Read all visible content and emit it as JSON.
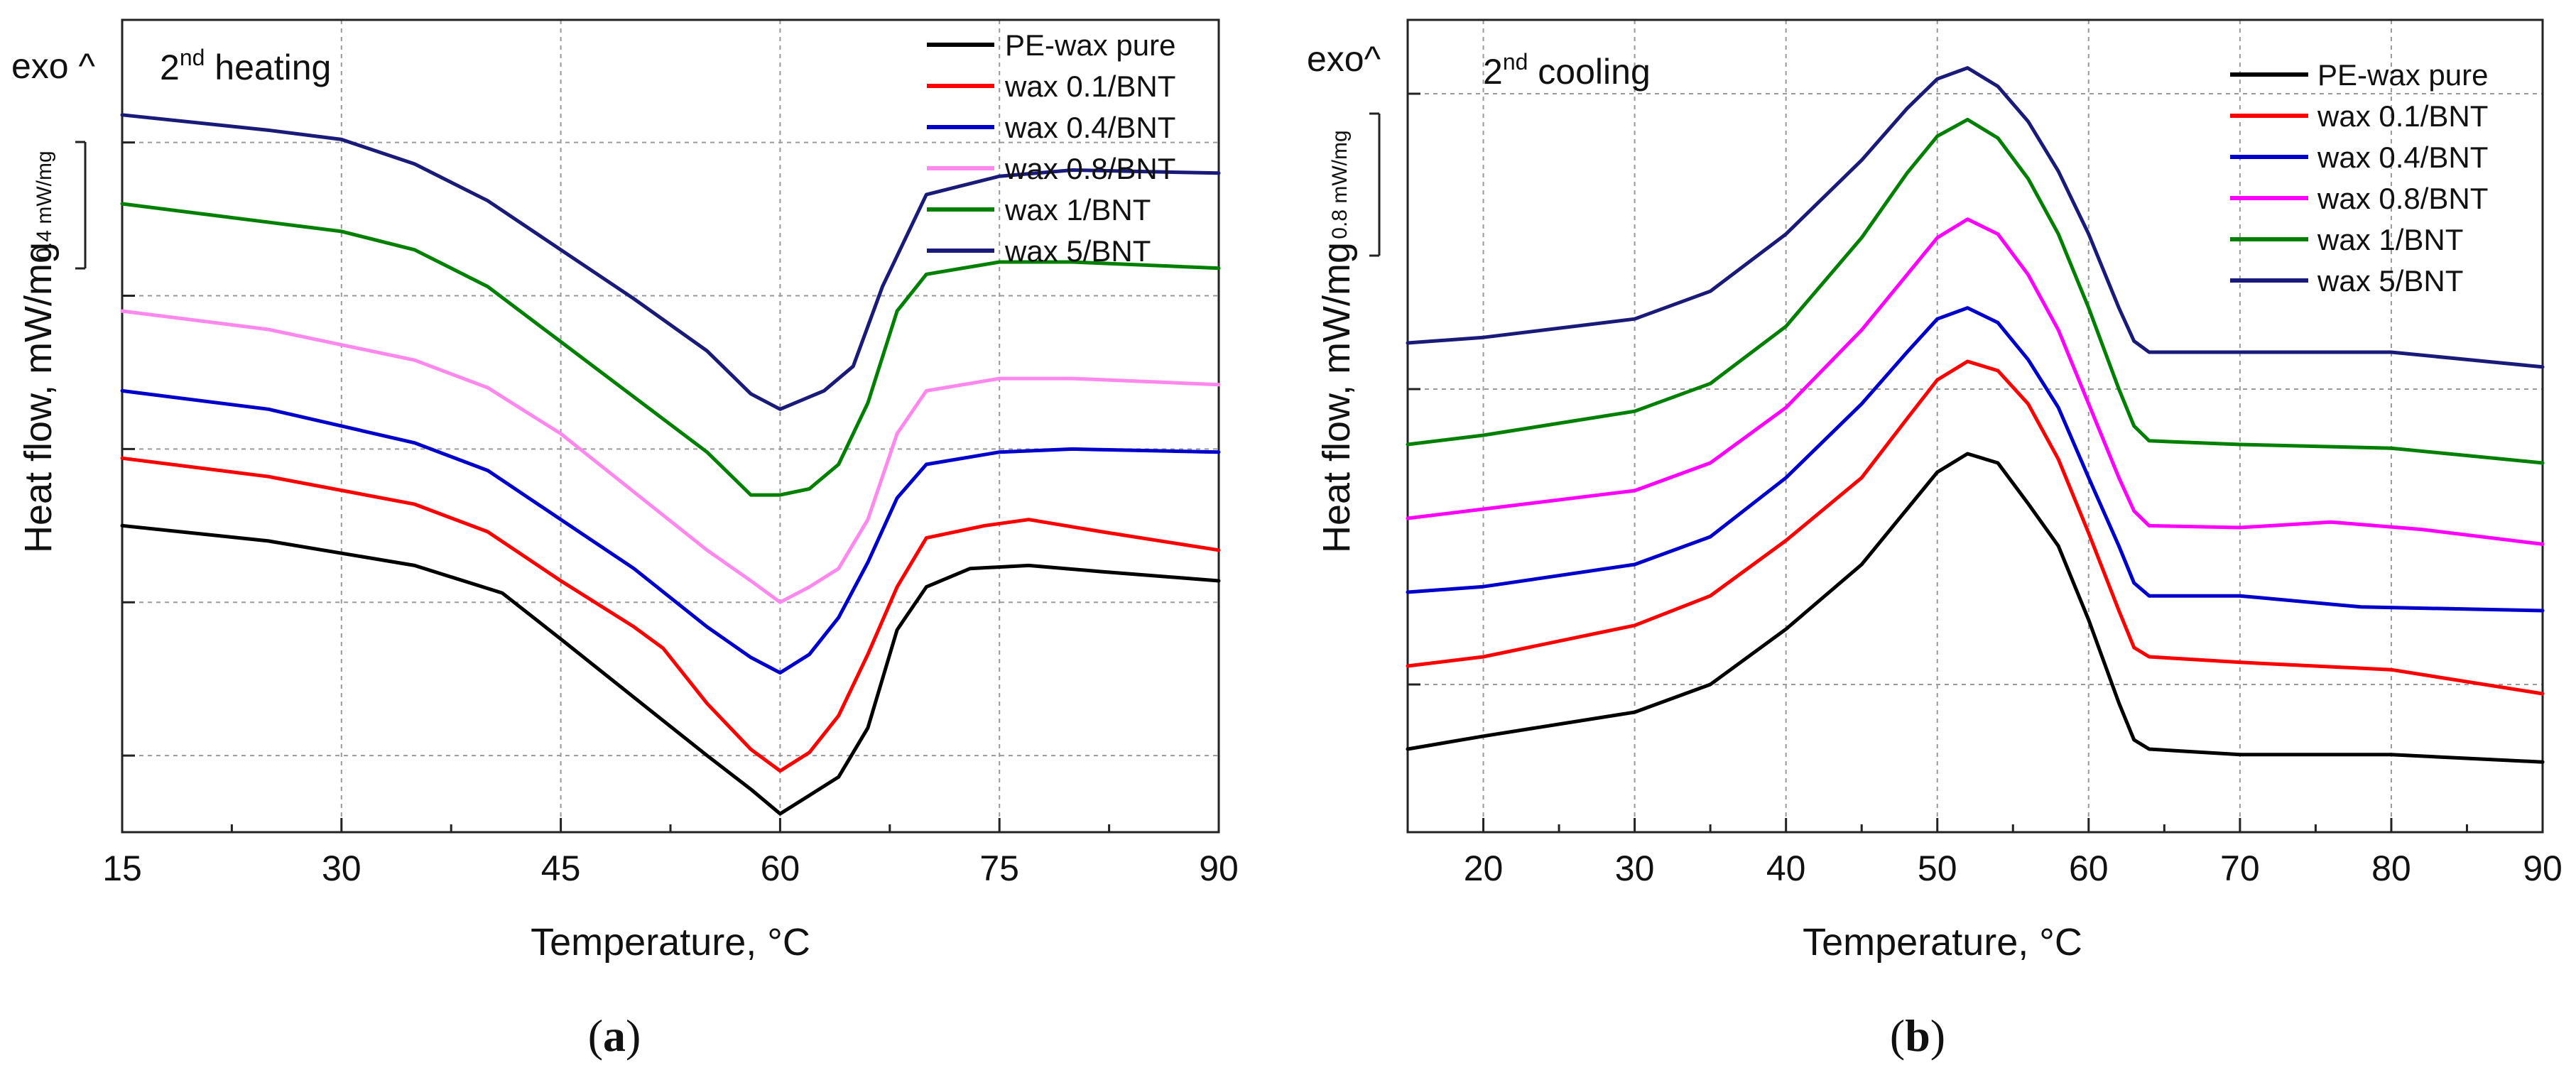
{
  "chart_data": [
    {
      "type": "line",
      "panel_label": "a",
      "xlabel": "Temperature, °C",
      "ylabel": "Heat flow, mW/mg",
      "annotation": "2nd heating",
      "exo_label": "exo ^",
      "scale_bar_label": "0.4 mW/mg",
      "scale_bar_value": 0.4,
      "xlim": [
        15,
        90
      ],
      "x_ticks": [
        "15",
        "30",
        "45",
        "60",
        "75",
        "90"
      ],
      "ylim": [
        0,
        2.65
      ],
      "y_grid": [
        0.25,
        0.75,
        1.25,
        1.75,
        2.25
      ],
      "grid": true,
      "legend_position": "top-right",
      "series": [
        {
          "name": "PE-wax pure",
          "color": "#000000",
          "points": [
            [
              15,
              1.0
            ],
            [
              25,
              0.95
            ],
            [
              35,
              0.87
            ],
            [
              41,
              0.78
            ],
            [
              45,
              0.63
            ],
            [
              50,
              0.44
            ],
            [
              55,
              0.25
            ],
            [
              58,
              0.14
            ],
            [
              60,
              0.06
            ],
            [
              62,
              0.12
            ],
            [
              64,
              0.18
            ],
            [
              66,
              0.34
            ],
            [
              67,
              0.5
            ],
            [
              68,
              0.66
            ],
            [
              70,
              0.8
            ],
            [
              73,
              0.86
            ],
            [
              77,
              0.87
            ],
            [
              82,
              0.85
            ],
            [
              90,
              0.82
            ]
          ]
        },
        {
          "name": "wax 0.1/BNT",
          "color": "#ff0000",
          "points": [
            [
              15,
              1.22
            ],
            [
              25,
              1.16
            ],
            [
              35,
              1.07
            ],
            [
              40,
              0.98
            ],
            [
              45,
              0.82
            ],
            [
              50,
              0.67
            ],
            [
              52,
              0.6
            ],
            [
              55,
              0.42
            ],
            [
              58,
              0.27
            ],
            [
              60,
              0.2
            ],
            [
              62,
              0.26
            ],
            [
              64,
              0.38
            ],
            [
              66,
              0.58
            ],
            [
              68,
              0.8
            ],
            [
              70,
              0.96
            ],
            [
              74,
              1.0
            ],
            [
              77,
              1.02
            ],
            [
              82,
              0.98
            ],
            [
              90,
              0.92
            ]
          ]
        },
        {
          "name": "wax 0.4/BNT",
          "color": "#0000cc",
          "points": [
            [
              15,
              1.44
            ],
            [
              25,
              1.38
            ],
            [
              35,
              1.27
            ],
            [
              40,
              1.18
            ],
            [
              45,
              1.02
            ],
            [
              50,
              0.86
            ],
            [
              55,
              0.67
            ],
            [
              58,
              0.57
            ],
            [
              60,
              0.52
            ],
            [
              62,
              0.58
            ],
            [
              64,
              0.7
            ],
            [
              66,
              0.88
            ],
            [
              68,
              1.09
            ],
            [
              70,
              1.2
            ],
            [
              75,
              1.24
            ],
            [
              80,
              1.25
            ],
            [
              90,
              1.24
            ]
          ]
        },
        {
          "name": "wax 0.8/BNT",
          "color": "#ff88ee",
          "points": [
            [
              15,
              1.7
            ],
            [
              25,
              1.64
            ],
            [
              35,
              1.54
            ],
            [
              40,
              1.45
            ],
            [
              45,
              1.3
            ],
            [
              50,
              1.11
            ],
            [
              55,
              0.92
            ],
            [
              58,
              0.82
            ],
            [
              60,
              0.75
            ],
            [
              62,
              0.8
            ],
            [
              64,
              0.86
            ],
            [
              66,
              1.02
            ],
            [
              68,
              1.3
            ],
            [
              70,
              1.44
            ],
            [
              75,
              1.48
            ],
            [
              80,
              1.48
            ],
            [
              90,
              1.46
            ]
          ]
        },
        {
          "name": "wax 1/BNT",
          "color": "#008000",
          "points": [
            [
              15,
              2.05
            ],
            [
              20,
              2.02
            ],
            [
              30,
              1.96
            ],
            [
              35,
              1.9
            ],
            [
              40,
              1.78
            ],
            [
              45,
              1.6
            ],
            [
              50,
              1.42
            ],
            [
              55,
              1.24
            ],
            [
              58,
              1.1
            ],
            [
              60,
              1.1
            ],
            [
              62,
              1.12
            ],
            [
              64,
              1.2
            ],
            [
              66,
              1.4
            ],
            [
              68,
              1.7
            ],
            [
              70,
              1.82
            ],
            [
              75,
              1.86
            ],
            [
              80,
              1.86
            ],
            [
              90,
              1.84
            ]
          ]
        },
        {
          "name": "wax 5/BNT",
          "color": "#1a1a7a",
          "points": [
            [
              15,
              2.34
            ],
            [
              25,
              2.29
            ],
            [
              30,
              2.26
            ],
            [
              35,
              2.18
            ],
            [
              40,
              2.06
            ],
            [
              45,
              1.9
            ],
            [
              50,
              1.74
            ],
            [
              55,
              1.57
            ],
            [
              58,
              1.43
            ],
            [
              60,
              1.38
            ],
            [
              63,
              1.44
            ],
            [
              65,
              1.52
            ],
            [
              67,
              1.78
            ],
            [
              70,
              2.08
            ],
            [
              75,
              2.14
            ],
            [
              80,
              2.16
            ],
            [
              90,
              2.15
            ]
          ]
        }
      ]
    },
    {
      "type": "line",
      "panel_label": "b",
      "xlabel": "Temperature, °C",
      "ylabel": "Heat flow, mW/mg",
      "annotation": "2nd cooling",
      "exo_label": "exo^",
      "scale_bar_label": "0.8 mW/mg",
      "scale_bar_value": 0.8,
      "xlim": [
        15,
        90
      ],
      "x_ticks": [
        "20",
        "30",
        "40",
        "50",
        "60",
        "70",
        "80",
        "90"
      ],
      "ylim": [
        0,
        4.4
      ],
      "y_grid": [
        0.8,
        2.4,
        4.0
      ],
      "grid": true,
      "legend_position": "top-right",
      "series": [
        {
          "name": "PE-wax pure",
          "color": "#000000",
          "points": [
            [
              15,
              0.45
            ],
            [
              20,
              0.52
            ],
            [
              30,
              0.65
            ],
            [
              35,
              0.8
            ],
            [
              40,
              1.1
            ],
            [
              45,
              1.45
            ],
            [
              48,
              1.75
            ],
            [
              50,
              1.95
            ],
            [
              52,
              2.05
            ],
            [
              54,
              2.0
            ],
            [
              56,
              1.78
            ],
            [
              58,
              1.55
            ],
            [
              60,
              1.15
            ],
            [
              62,
              0.7
            ],
            [
              63,
              0.5
            ],
            [
              64,
              0.45
            ],
            [
              70,
              0.42
            ],
            [
              80,
              0.42
            ],
            [
              90,
              0.38
            ]
          ]
        },
        {
          "name": "wax 0.1/BNT",
          "color": "#ff0000",
          "points": [
            [
              15,
              0.9
            ],
            [
              20,
              0.95
            ],
            [
              30,
              1.12
            ],
            [
              35,
              1.28
            ],
            [
              40,
              1.58
            ],
            [
              45,
              1.92
            ],
            [
              48,
              2.24
            ],
            [
              50,
              2.45
            ],
            [
              52,
              2.55
            ],
            [
              54,
              2.5
            ],
            [
              56,
              2.32
            ],
            [
              58,
              2.02
            ],
            [
              60,
              1.62
            ],
            [
              62,
              1.2
            ],
            [
              63,
              1.0
            ],
            [
              64,
              0.95
            ],
            [
              70,
              0.92
            ],
            [
              80,
              0.88
            ],
            [
              90,
              0.75
            ]
          ]
        },
        {
          "name": "wax 0.4/BNT",
          "color": "#0000cc",
          "points": [
            [
              15,
              1.3
            ],
            [
              20,
              1.33
            ],
            [
              30,
              1.45
            ],
            [
              35,
              1.6
            ],
            [
              40,
              1.92
            ],
            [
              45,
              2.32
            ],
            [
              48,
              2.6
            ],
            [
              50,
              2.78
            ],
            [
              52,
              2.84
            ],
            [
              54,
              2.76
            ],
            [
              56,
              2.56
            ],
            [
              58,
              2.3
            ],
            [
              60,
              1.92
            ],
            [
              62,
              1.55
            ],
            [
              63,
              1.35
            ],
            [
              64,
              1.28
            ],
            [
              70,
              1.28
            ],
            [
              78,
              1.22
            ],
            [
              90,
              1.2
            ]
          ]
        },
        {
          "name": "wax 0.8/BNT",
          "color": "#ff00ff",
          "points": [
            [
              15,
              1.7
            ],
            [
              20,
              1.75
            ],
            [
              30,
              1.85
            ],
            [
              35,
              2.0
            ],
            [
              40,
              2.3
            ],
            [
              45,
              2.72
            ],
            [
              48,
              3.02
            ],
            [
              50,
              3.22
            ],
            [
              52,
              3.32
            ],
            [
              54,
              3.24
            ],
            [
              56,
              3.02
            ],
            [
              58,
              2.72
            ],
            [
              60,
              2.32
            ],
            [
              62,
              1.92
            ],
            [
              63,
              1.74
            ],
            [
              64,
              1.66
            ],
            [
              70,
              1.65
            ],
            [
              76,
              1.68
            ],
            [
              82,
              1.64
            ],
            [
              90,
              1.56
            ]
          ]
        },
        {
          "name": "wax 1/BNT",
          "color": "#008000",
          "points": [
            [
              15,
              2.1
            ],
            [
              20,
              2.15
            ],
            [
              30,
              2.28
            ],
            [
              35,
              2.43
            ],
            [
              40,
              2.74
            ],
            [
              45,
              3.22
            ],
            [
              48,
              3.57
            ],
            [
              50,
              3.77
            ],
            [
              52,
              3.86
            ],
            [
              54,
              3.76
            ],
            [
              56,
              3.54
            ],
            [
              58,
              3.24
            ],
            [
              60,
              2.84
            ],
            [
              62,
              2.4
            ],
            [
              63,
              2.2
            ],
            [
              64,
              2.12
            ],
            [
              70,
              2.1
            ],
            [
              80,
              2.08
            ],
            [
              90,
              2.0
            ]
          ]
        },
        {
          "name": "wax 5/BNT",
          "color": "#1a1a7a",
          "points": [
            [
              15,
              2.65
            ],
            [
              20,
              2.68
            ],
            [
              30,
              2.78
            ],
            [
              35,
              2.93
            ],
            [
              40,
              3.24
            ],
            [
              45,
              3.64
            ],
            [
              48,
              3.92
            ],
            [
              50,
              4.08
            ],
            [
              52,
              4.14
            ],
            [
              54,
              4.04
            ],
            [
              56,
              3.85
            ],
            [
              58,
              3.58
            ],
            [
              60,
              3.24
            ],
            [
              62,
              2.84
            ],
            [
              63,
              2.66
            ],
            [
              64,
              2.6
            ],
            [
              70,
              2.6
            ],
            [
              80,
              2.6
            ],
            [
              90,
              2.52
            ]
          ]
        }
      ]
    }
  ]
}
